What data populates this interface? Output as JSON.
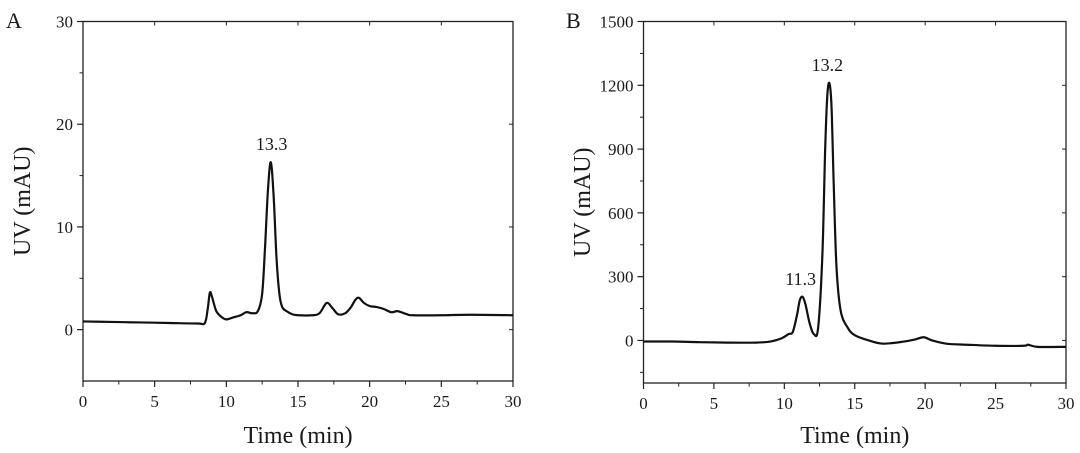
{
  "chart_data": [
    {
      "type": "line",
      "panel_label": "A",
      "xlabel": "Time (min)",
      "ylabel": "UV (mAU)",
      "xlim": [
        0,
        30
      ],
      "ylim": [
        -5,
        30
      ],
      "xticks": [
        0,
        5,
        10,
        15,
        20,
        25,
        30
      ],
      "yticks": [
        0,
        10,
        20,
        30
      ],
      "grid": false,
      "annotations": [
        {
          "text": "13.3",
          "x": 13.3,
          "y": 16.3
        }
      ],
      "x": [
        0,
        2,
        4,
        6,
        8,
        8.5,
        8.7,
        8.85,
        9.0,
        9.3,
        9.7,
        10.0,
        10.5,
        11.0,
        11.4,
        11.8,
        12.2,
        12.5,
        12.7,
        12.9,
        13.1,
        13.3,
        13.5,
        13.7,
        13.9,
        14.2,
        14.6,
        15.0,
        16.0,
        16.5,
        17.0,
        17.4,
        17.8,
        18.3,
        18.7,
        19.0,
        19.25,
        19.6,
        20.0,
        20.5,
        21.0,
        21.5,
        21.9,
        22.2,
        22.6,
        23.0,
        25.0,
        27.0,
        30.0
      ],
      "y": [
        0.8,
        0.75,
        0.7,
        0.65,
        0.6,
        0.65,
        2.0,
        3.6,
        3.2,
        1.8,
        1.2,
        1.0,
        1.2,
        1.4,
        1.7,
        1.6,
        1.8,
        3.5,
        8.0,
        13.5,
        16.3,
        13.0,
        7.0,
        3.5,
        2.2,
        1.8,
        1.5,
        1.4,
        1.4,
        1.6,
        2.6,
        2.1,
        1.5,
        1.6,
        2.2,
        2.9,
        3.1,
        2.6,
        2.3,
        2.2,
        2.0,
        1.7,
        1.8,
        1.7,
        1.5,
        1.4,
        1.4,
        1.45,
        1.4
      ],
      "color": "#111111"
    },
    {
      "type": "line",
      "panel_label": "B",
      "xlabel": "Time (min)",
      "ylabel": "UV (mAU)",
      "xlim": [
        0,
        30
      ],
      "ylim": [
        -200,
        1500
      ],
      "xticks": [
        0,
        5,
        10,
        15,
        20,
        25,
        30
      ],
      "yticks": [
        0,
        300,
        600,
        900,
        1200,
        1500
      ],
      "grid": false,
      "annotations": [
        {
          "text": "11.3",
          "x": 11.3,
          "y": 205
        },
        {
          "text": "13.2",
          "x": 13.2,
          "y": 1210
        }
      ],
      "x": [
        0,
        2,
        4,
        6,
        8,
        9,
        9.8,
        10.3,
        10.6,
        10.9,
        11.1,
        11.3,
        11.5,
        11.8,
        12.1,
        12.4,
        12.7,
        12.9,
        13.05,
        13.2,
        13.35,
        13.5,
        13.7,
        14.0,
        14.5,
        15.0,
        16.0,
        17.0,
        18.5,
        19.3,
        19.9,
        20.5,
        21.5,
        23.0,
        25.0,
        27.0,
        27.3,
        28.0,
        30.0
      ],
      "y": [
        -5,
        -5,
        -8,
        -10,
        -10,
        -5,
        10,
        30,
        40,
        120,
        190,
        205,
        170,
        80,
        30,
        60,
        400,
        900,
        1150,
        1210,
        1100,
        750,
        350,
        140,
        60,
        25,
        0,
        -15,
        -5,
        5,
        15,
        0,
        -15,
        -20,
        -25,
        -25,
        -20,
        -30,
        -30
      ],
      "color": "#111111"
    }
  ]
}
